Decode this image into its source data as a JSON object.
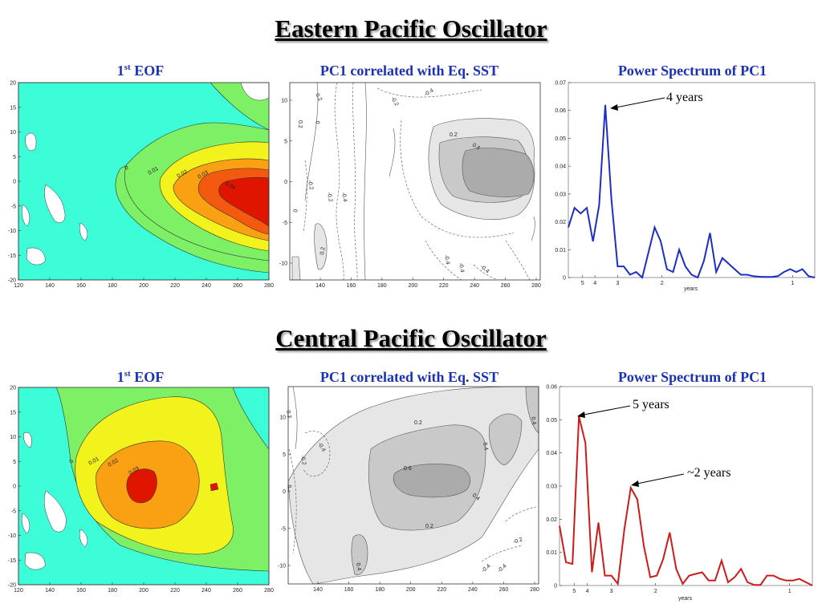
{
  "sections": [
    {
      "title": "Eastern Pacific Oscillator",
      "eof_title_prefix": "1",
      "eof_title_sup": "st",
      "eof_title_suffix": " EOF",
      "corr_title": "PC1 correlated with Eq. SST",
      "spec_title": "Power Spectrum of PC1"
    },
    {
      "title": "Central Pacific Oscillator",
      "eof_title_prefix": "1",
      "eof_title_sup": "st",
      "eof_title_suffix": " EOF",
      "corr_title": "PC1 correlated with Eq. SST",
      "spec_title": "Power Spectrum of PC1"
    }
  ],
  "chart_data": [
    {
      "type": "heatmap",
      "name": "EOF1 map (Eastern Pacific)",
      "x_ticks": [
        "120",
        "140",
        "160",
        "180",
        "200",
        "220",
        "240",
        "260",
        "280"
      ],
      "y_ticks": [
        "20",
        "15",
        "10",
        "5",
        "0",
        "-5",
        "-10",
        "-15",
        "-20"
      ],
      "xlim": [
        120,
        280
      ],
      "ylim": [
        -20,
        20
      ],
      "contour_labels": [
        "0",
        "0.01",
        "0.02",
        "0.03",
        "0.04"
      ],
      "colors": [
        "#ffffff",
        "#3dfcd8",
        "#7df065",
        "#f2f21c",
        "#f9a013",
        "#f45a0f",
        "#e01500"
      ]
    },
    {
      "type": "heatmap",
      "name": "PC1 correlated with Eq. SST (Eastern Pacific)",
      "x_ticks": [
        "140",
        "160",
        "180",
        "200",
        "220",
        "240",
        "260",
        "280"
      ],
      "y_ticks": [
        "10",
        "5",
        "0",
        "-5",
        "-10"
      ],
      "contour_labels": [
        "0.2",
        "-0.2",
        "0",
        "-0.4",
        "-0.2",
        "0.2",
        "0.4",
        "-0.4",
        "-0.2",
        "0.2",
        "0.2",
        "-0.4",
        "-0.4",
        "-0.4",
        "0"
      ],
      "colors": [
        "#ffffff",
        "#e6e6e6",
        "#c9c9c9",
        "#ababab"
      ]
    },
    {
      "type": "line",
      "name": "Power spectrum (Eastern Pacific)",
      "xlabel": "years",
      "x_tick_labels": [
        "5",
        "4",
        "3",
        "2",
        "1"
      ],
      "ylim": [
        0,
        0.07
      ],
      "y_ticks": [
        "0",
        "0.01",
        "0.02",
        "0.03",
        "0.04",
        "0.05",
        "0.06",
        "0.07"
      ],
      "series_color": "#1c2ec7",
      "values": [
        0.018,
        0.025,
        0.023,
        0.025,
        0.013,
        0.026,
        0.062,
        0.028,
        0.004,
        0.004,
        0.001,
        0.002,
        0.0,
        0.009,
        0.018,
        0.013,
        0.003,
        0.002,
        0.01,
        0.004,
        0.001,
        0.0,
        0.006,
        0.016,
        0.002,
        0.007,
        0.005,
        0.003,
        0.001,
        0.001,
        0.0005,
        0.0003,
        0.0002,
        0.0002,
        0.0005,
        0.002,
        0.003,
        0.002,
        0.003,
        0.0005,
        0.0
      ],
      "annotations": [
        {
          "text": "4 years",
          "x_index": 6
        }
      ]
    },
    {
      "type": "heatmap",
      "name": "EOF1 map (Central Pacific)",
      "x_ticks": [
        "120",
        "140",
        "160",
        "180",
        "200",
        "220",
        "240",
        "260",
        "280"
      ],
      "y_ticks": [
        "20",
        "15",
        "10",
        "5",
        "0",
        "-5",
        "-10",
        "-15",
        "-20"
      ],
      "xlim": [
        120,
        280
      ],
      "ylim": [
        -20,
        20
      ],
      "contour_labels": [
        "0",
        "0.01",
        "0.02",
        "0.03"
      ],
      "colors": [
        "#ffffff",
        "#3dfcd8",
        "#7df065",
        "#f2f21c",
        "#f9a013",
        "#e01500"
      ]
    },
    {
      "type": "heatmap",
      "name": "PC1 correlated with Eq. SST (Central Pacific)",
      "x_ticks": [
        "140",
        "160",
        "180",
        "200",
        "220",
        "240",
        "260",
        "280"
      ],
      "y_ticks": [
        "10",
        "5",
        "0",
        "-5",
        "-10"
      ],
      "contour_labels": [
        "0.2",
        "-0.2",
        "-0.4",
        "0",
        "0.2",
        "0.4",
        "0.6",
        "0.4",
        "0.4",
        "0.2",
        "0.4",
        "-0.4",
        "-0.4",
        "-0.2"
      ],
      "colors": [
        "#ffffff",
        "#e6e6e6",
        "#c9c9c9",
        "#ababab"
      ]
    },
    {
      "type": "line",
      "name": "Power spectrum (Central Pacific)",
      "xlabel": "years",
      "x_tick_labels": [
        "5",
        "4",
        "3",
        "2",
        "1"
      ],
      "ylim": [
        0,
        0.06
      ],
      "y_ticks": [
        "0",
        "0.01",
        "0.02",
        "0.03",
        "0.04",
        "0.05",
        "0.06"
      ],
      "series_color": "#d01a1a",
      "values": [
        0.018,
        0.007,
        0.0065,
        0.051,
        0.043,
        0.004,
        0.019,
        0.003,
        0.003,
        0.0005,
        0.017,
        0.0295,
        0.026,
        0.012,
        0.0025,
        0.003,
        0.008,
        0.016,
        0.005,
        0.0005,
        0.003,
        0.0035,
        0.004,
        0.0015,
        0.0015,
        0.0075,
        0.001,
        0.0025,
        0.005,
        0.001,
        0.0002,
        0.0002,
        0.003,
        0.003,
        0.002,
        0.0015,
        0.0015,
        0.002,
        0.001,
        0.0
      ],
      "annotations": [
        {
          "text": "5 years",
          "x_index": 3
        },
        {
          "text": "~2 years",
          "x_index": 11
        }
      ]
    }
  ]
}
